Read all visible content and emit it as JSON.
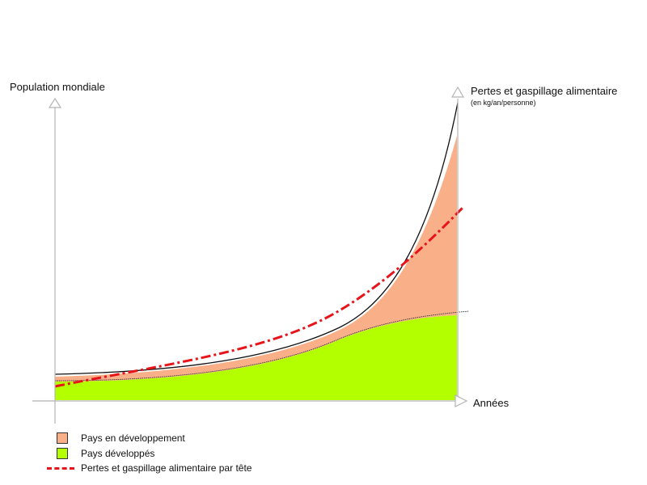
{
  "labels": {
    "y_left": "Population mondiale",
    "y_right": "Pertes et gaspillage alimentaire",
    "y_right_unit": "(en kg/an/personne)",
    "x_axis": "Années"
  },
  "legend": [
    {
      "label": "Pays en développement",
      "color": "#f9b088",
      "type": "area"
    },
    {
      "label": "Pays développés",
      "color": "#b3ff00",
      "type": "area"
    },
    {
      "label": "Pertes et gaspillage alimentaire par tête",
      "color": "#e8141b",
      "type": "dash-dot-line"
    }
  ],
  "colors": {
    "axis": "#b5b5b5",
    "developing": "#f9b088",
    "developed": "#b3ff00",
    "per_capita_line": "#e8141b",
    "outline": "#111111"
  }
}
